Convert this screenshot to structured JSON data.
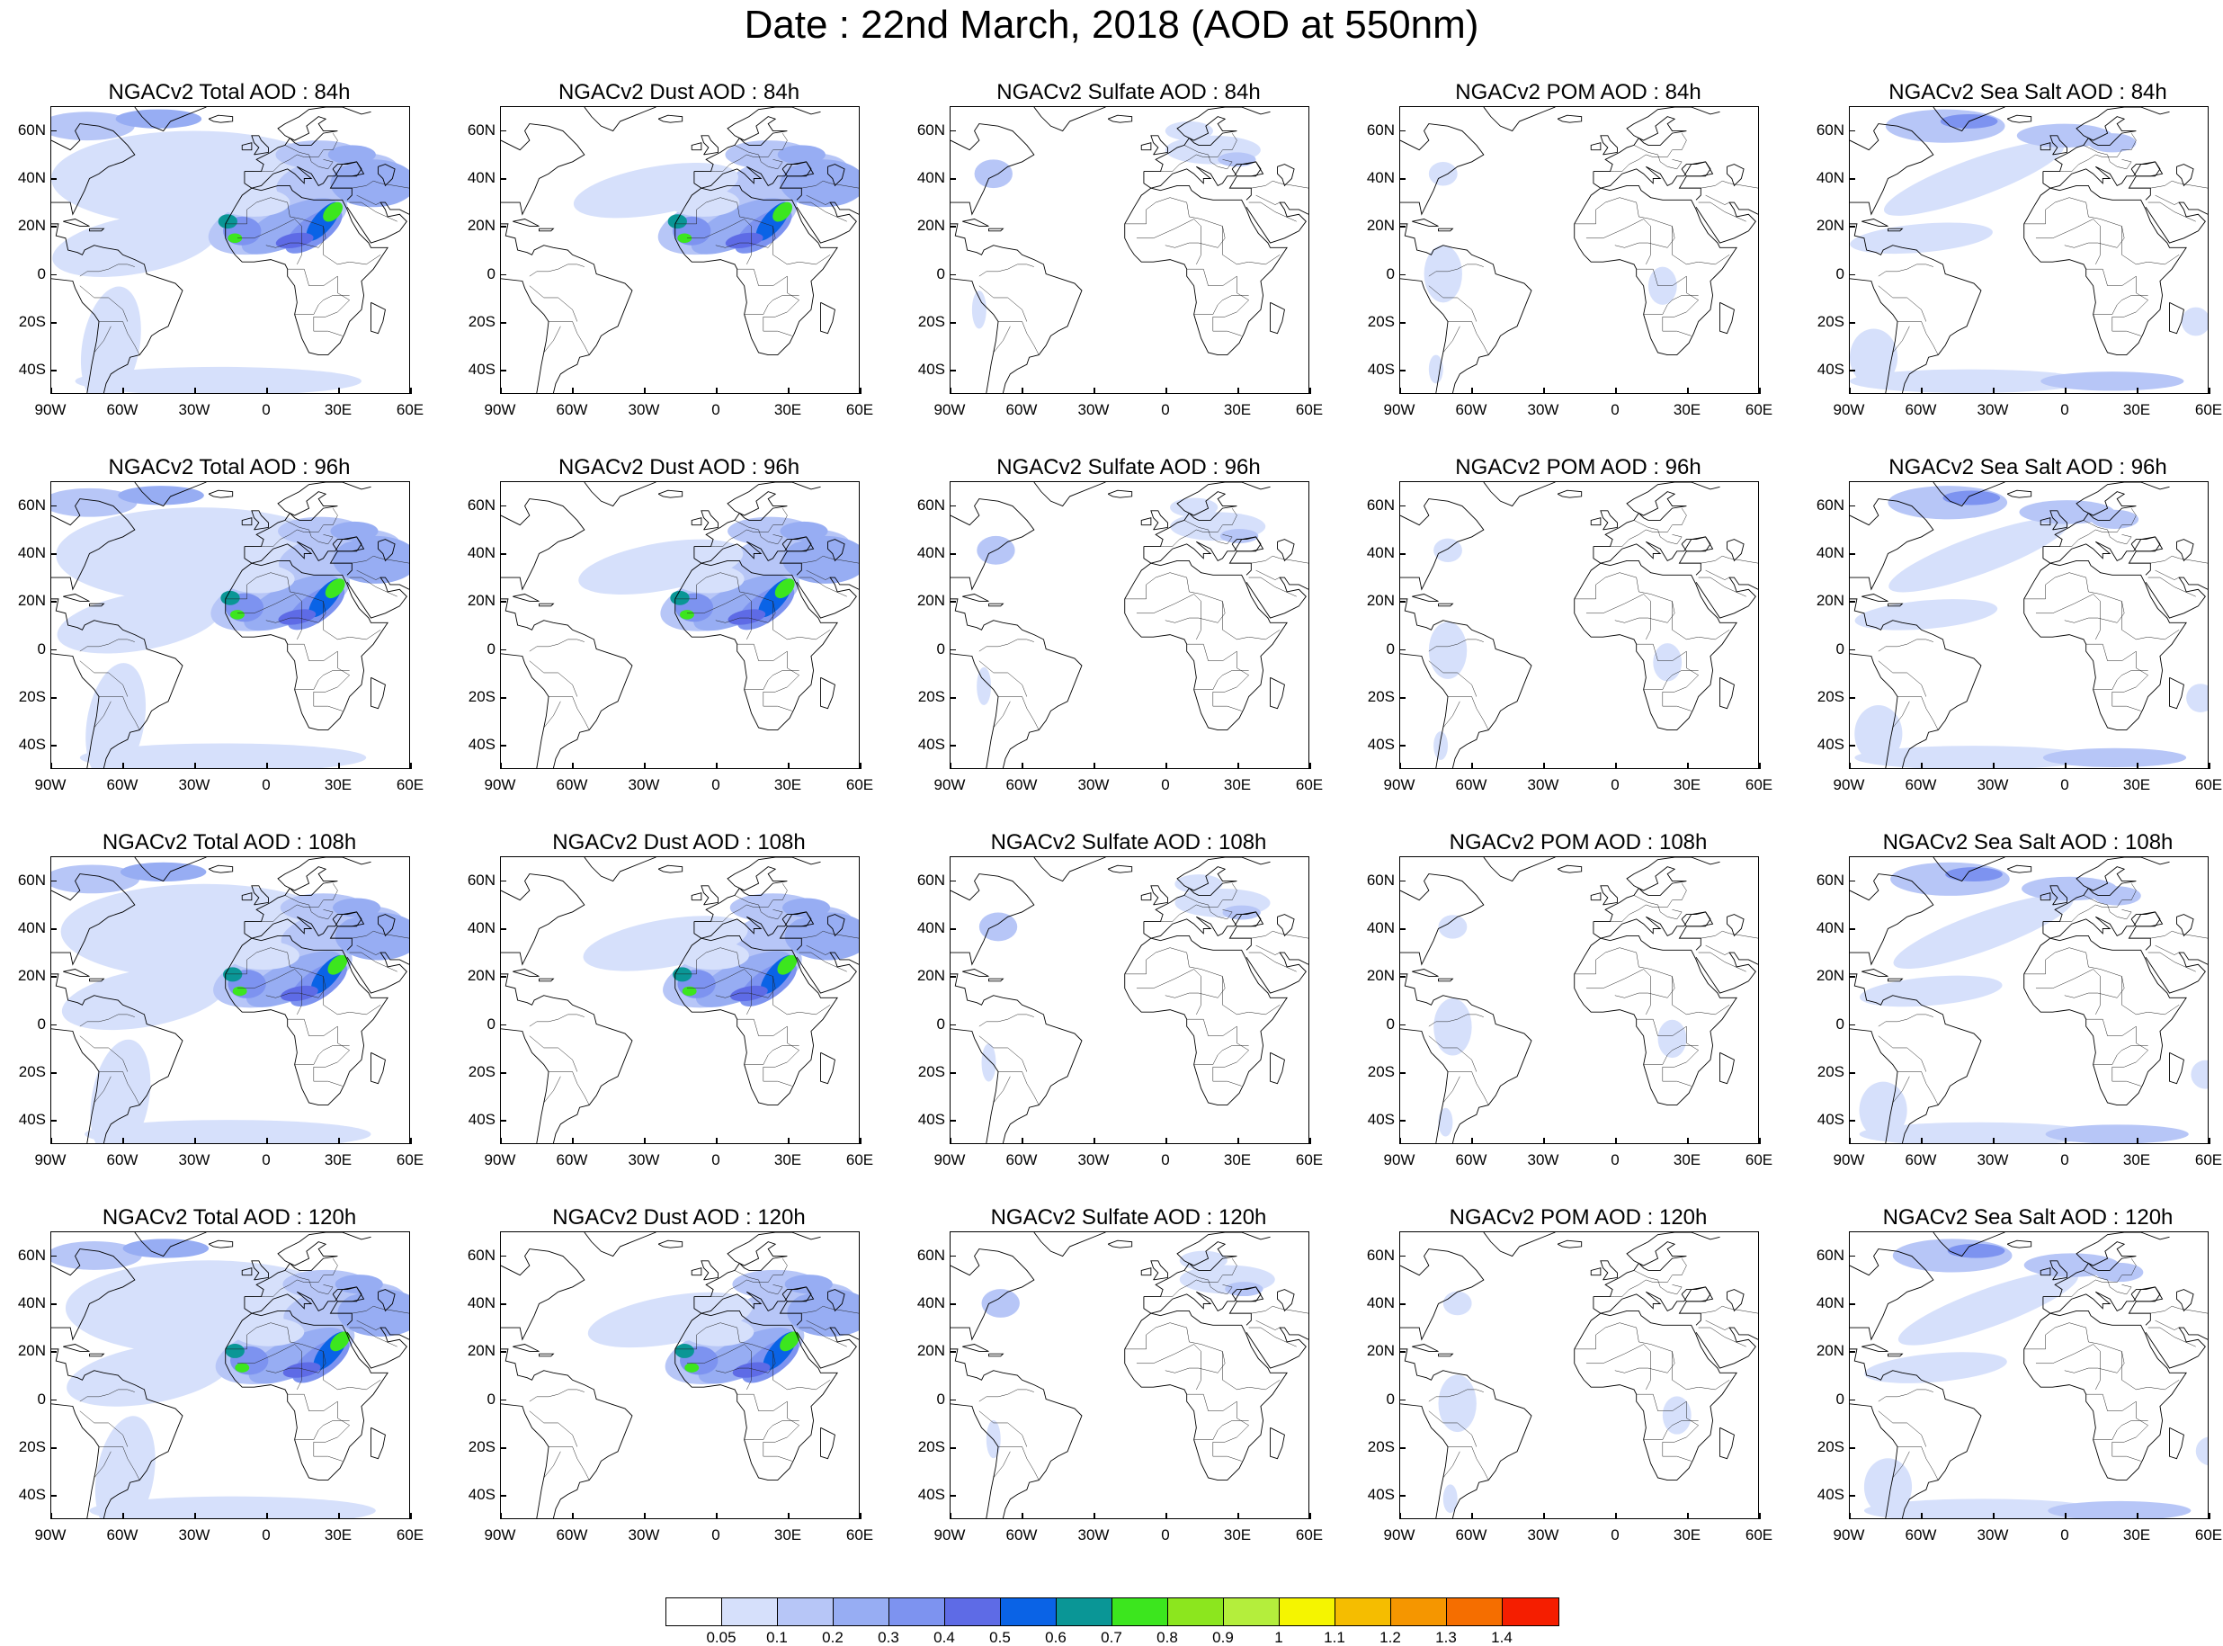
{
  "title": "Date : 22nd March, 2018 (AOD at 550nm)",
  "lat_ticks": [
    "60N",
    "40N",
    "20N",
    "0",
    "20S",
    "40S"
  ],
  "lon_ticks": [
    "90W",
    "60W",
    "30W",
    "0",
    "30E",
    "60E"
  ],
  "domain_extent": {
    "lon": [
      -90,
      60
    ],
    "lat": [
      -50,
      70
    ]
  },
  "panels": [
    [
      {
        "title": "NGACv2 Total AOD : 84h",
        "species": "total"
      },
      {
        "title": "NGACv2 Dust AOD : 84h",
        "species": "dust"
      },
      {
        "title": "NGACv2 Sulfate AOD : 84h",
        "species": "sulfate"
      },
      {
        "title": "NGACv2 POM AOD : 84h",
        "species": "pom"
      },
      {
        "title": "NGACv2 Sea Salt AOD : 84h",
        "species": "seasalt"
      }
    ],
    [
      {
        "title": "NGACv2 Total AOD : 96h",
        "species": "total"
      },
      {
        "title": "NGACv2 Dust AOD : 96h",
        "species": "dust"
      },
      {
        "title": "NGACv2 Sulfate AOD : 96h",
        "species": "sulfate"
      },
      {
        "title": "NGACv2 POM AOD : 96h",
        "species": "pom"
      },
      {
        "title": "NGACv2 Sea Salt AOD : 96h",
        "species": "seasalt"
      }
    ],
    [
      {
        "title": "NGACv2 Total AOD : 108h",
        "species": "total"
      },
      {
        "title": "NGACv2 Dust AOD : 108h",
        "species": "dust"
      },
      {
        "title": "NGACv2 Sulfate AOD : 108h",
        "species": "sulfate"
      },
      {
        "title": "NGACv2 POM AOD : 108h",
        "species": "pom"
      },
      {
        "title": "NGACv2 Sea Salt AOD : 108h",
        "species": "seasalt"
      }
    ],
    [
      {
        "title": "NGACv2 Total AOD : 120h",
        "species": "total"
      },
      {
        "title": "NGACv2 Dust AOD : 120h",
        "species": "dust"
      },
      {
        "title": "NGACv2 Sulfate AOD : 120h",
        "species": "sulfate"
      },
      {
        "title": "NGACv2 POM AOD : 120h",
        "species": "pom"
      },
      {
        "title": "NGACv2 Sea Salt  AOD : 120h",
        "species": "seasalt"
      }
    ]
  ],
  "colorbar": {
    "labels": [
      "0.05",
      "0.1",
      "0.2",
      "0.3",
      "0.4",
      "0.5",
      "0.6",
      "0.7",
      "0.8",
      "0.9",
      "1",
      "1.1",
      "1.2",
      "1.3",
      "1.4"
    ],
    "colors": [
      "#ffffff",
      "#d6e0fb",
      "#b7c6f7",
      "#97adf3",
      "#7d93f0",
      "#5e6be6",
      "#0a63e6",
      "#0a9696",
      "#3ce61e",
      "#8ce61e",
      "#b4ee3c",
      "#f5f500",
      "#f5bd00",
      "#f59600",
      "#f56e00",
      "#f51e00"
    ]
  }
}
